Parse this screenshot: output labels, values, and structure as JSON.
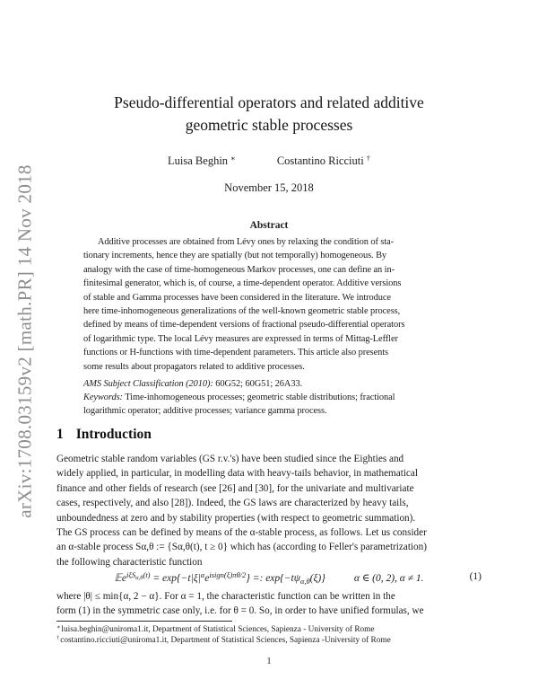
{
  "arxiv_stamp": "arXiv:1708.03159v2  [math.PR]  14 Nov 2018",
  "title": {
    "line1": "Pseudo-differential operators and related additive",
    "line2": "geometric stable processes"
  },
  "authors": [
    {
      "name": "Luisa Beghin",
      "mark": "∗"
    },
    {
      "name": "Costantino Ricciuti",
      "mark": "†"
    }
  ],
  "date": "November 15, 2018",
  "abstract": {
    "heading": "Abstract",
    "lines": [
      "Additive processes are obtained from Lévy ones by relaxing the condition of sta-",
      "tionary increments, hence they are spatially (but not temporally) homogeneous. By",
      "analogy with the case of time-homogeneous Markov processes, one can define an in-",
      "finitesimal generator, which is, of course, a time-dependent operator. Additive versions",
      "of stable and Gamma processes have been considered in the literature. We introduce",
      "here time-inhomogeneous generalizations of the well-known geometric stable process,",
      "defined by means of time-dependent versions of fractional pseudo-differential operators",
      "of logarithmic type. The local Lévy measures are expressed in terms of Mittag-Leffler",
      "functions or H-functions with time-dependent parameters. This article also presents",
      "some results about propagators related to additive processes."
    ]
  },
  "classification": {
    "ams_label": "AMS Subject Classification (2010):",
    "ams_value": " 60G52; 60G51; 26A33.",
    "keywords_label": "Keywords:",
    "keywords_line1": " Time-inhomogeneous processes; geometric stable distributions; fractional",
    "keywords_line2": "logarithmic operator; additive processes; variance gamma process."
  },
  "section": {
    "number": "1",
    "title": "Introduction"
  },
  "intro": {
    "lines": [
      "Geometric stable random variables (GS r.v.'s) have been studied since the Eighties and",
      "widely applied, in particular, in modelling data with heavy-tails behavior, in mathematical",
      "finance and other fields of research (see [26] and [30], for the univariate and multivariate",
      "cases, respectively, and also [28]). Indeed, the GS laws are characterized by heavy tails,",
      "unboundedness at zero and by stability properties (with respect to geometric summation).",
      "The GS process can be defined by means of the α-stable process, as follows. Let us consider",
      "an α-stable process Sα,θ := {Sα,θ(t), t ≥ 0} which has (according to Feller's parametrization)",
      "the following characteristic function"
    ],
    "after_equation_lines": [
      "where |θ| ≤ min{α, 2 − α}.  For α = 1, the characteristic function can be written in the",
      "form (1) in the symmetric case only, i.e. for θ = 0.  So, in order to have unified formulas, we"
    ]
  },
  "equation": {
    "segments": [
      {
        "t": "𝔼e",
        "s": "n"
      },
      {
        "t": "iξS",
        "s": "sup"
      },
      {
        "t": "α,θ",
        "s": "supsub"
      },
      {
        "t": "(t)",
        "s": "sup"
      },
      {
        "t": " = exp{−t|ξ|",
        "s": "n"
      },
      {
        "t": "α",
        "s": "sup"
      },
      {
        "t": "e",
        "s": "n"
      },
      {
        "t": "isign(ξ)πθ/2",
        "s": "sup"
      },
      {
        "t": "} =: exp{−tψ",
        "s": "n"
      },
      {
        "t": "α,θ",
        "s": "sub"
      },
      {
        "t": "(ξ)}",
        "s": "n"
      },
      {
        "t": "α ∈ (0, 2), α ≠ 1.",
        "s": "gap"
      }
    ],
    "number": "(1)"
  },
  "footnotes": [
    {
      "mark": "∗",
      "text": "luisa.beghin@uniroma1.it, Department of Statistical Sciences, Sapienza - University of Rome"
    },
    {
      "mark": "†",
      "text": "costantino.ricciuti@uniroma1.it, Department of Statistical Sciences, Sapienza -University of Rome"
    }
  ],
  "page_number": "1"
}
